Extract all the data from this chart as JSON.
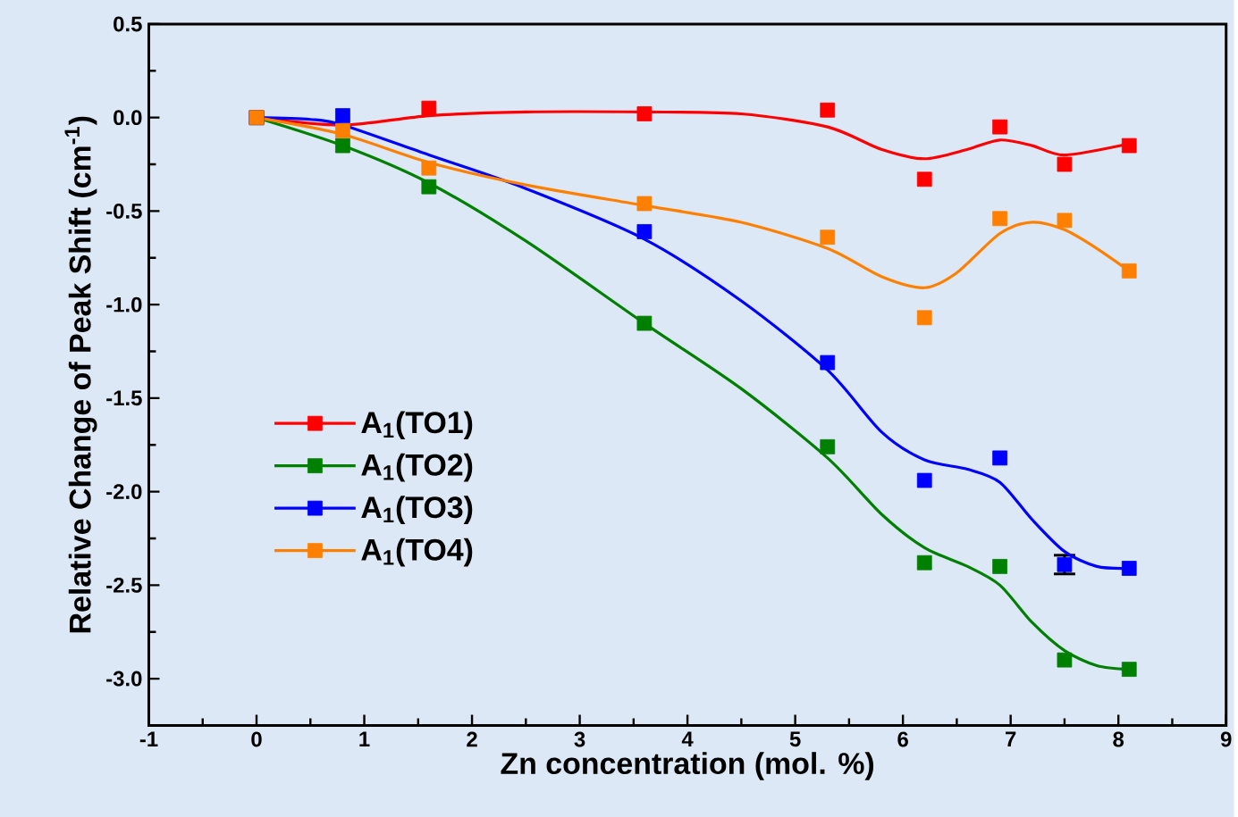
{
  "chart_data": {
    "type": "scatter",
    "xlabel": "Zn concentration (mol. %)",
    "ylabel": "Relative Change of Peak Shift (cm$^{-1}$)",
    "xlim": [
      -1,
      9
    ],
    "ylim": [
      -3.25,
      0.5
    ],
    "xticks": [
      -1,
      0,
      1,
      2,
      3,
      4,
      5,
      6,
      7,
      8,
      9
    ],
    "yticks": [
      {
        "value": -3.0,
        "label": "-3.0"
      },
      {
        "value": -2.5,
        "label": "-2.5"
      },
      {
        "value": -2.0,
        "label": "-2.0"
      },
      {
        "value": -1.5,
        "label": "-1.5"
      },
      {
        "value": -1.0,
        "label": "-1.0"
      },
      {
        "value": -0.5,
        "label": "-0.5"
      },
      {
        "value": 0.0,
        "label": "0.0"
      },
      {
        "value": 0.5,
        "label": "0.5"
      }
    ],
    "grid": false,
    "legend": "left",
    "marker": "square",
    "x": [
      0,
      0.8,
      1.6,
      3.6,
      5.3,
      6.2,
      6.9,
      7.5,
      8.1
    ],
    "series": [
      {
        "name": "A$_{1}$(TO1)",
        "color": "#ff0000",
        "values": [
          0,
          null,
          0.05,
          0.02,
          0.04,
          -0.33,
          -0.05,
          -0.25,
          -0.15
        ]
      },
      {
        "name": "A$_{1}$(TO2)",
        "color": "#008000",
        "values": [
          0,
          -0.15,
          -0.37,
          -1.1,
          -1.76,
          -2.38,
          -2.4,
          -2.9,
          -2.95
        ]
      },
      {
        "name": "A$_{1}$(TO3)",
        "color": "#0000ff",
        "values": [
          0,
          0.01,
          null,
          -0.61,
          -1.31,
          -1.94,
          -1.82,
          -2.39,
          -2.41
        ],
        "errors": [
          null,
          null,
          null,
          null,
          null,
          null,
          null,
          0.05,
          null
        ]
      },
      {
        "name": "A$_{1}$(TO4)",
        "color": "#ff8000",
        "values": [
          0,
          -0.07,
          -0.27,
          -0.46,
          -0.64,
          -1.07,
          -0.54,
          -0.55,
          -0.82
        ]
      },
      {
        "type": "line",
        "color": "#ff0000",
        "marker": "none",
        "x": [
          0,
          0.8,
          1.6,
          2.5,
          3.6,
          4.5,
          5.3,
          5.8,
          6.2,
          6.6,
          6.9,
          7.2,
          7.5,
          8.1
        ],
        "values": [
          0,
          -0.04,
          0.01,
          0.03,
          0.03,
          0.02,
          -0.05,
          -0.17,
          -0.22,
          -0.17,
          -0.12,
          -0.15,
          -0.2,
          -0.14
        ]
      },
      {
        "type": "line",
        "color": "#008000",
        "marker": "none",
        "x": [
          0,
          0.8,
          1.6,
          2.5,
          3.6,
          4.5,
          5.3,
          5.8,
          6.2,
          6.6,
          6.9,
          7.2,
          7.5,
          7.8,
          8.1
        ],
        "values": [
          0,
          -0.15,
          -0.35,
          -0.66,
          -1.1,
          -1.45,
          -1.82,
          -2.12,
          -2.3,
          -2.4,
          -2.5,
          -2.7,
          -2.85,
          -2.93,
          -2.95
        ]
      },
      {
        "type": "line",
        "color": "#0000ff",
        "marker": "none",
        "x": [
          0,
          0.5,
          0.8,
          1.6,
          2.5,
          3.6,
          4.5,
          5.3,
          5.8,
          6.2,
          6.6,
          6.9,
          7.2,
          7.5,
          7.8,
          8.1
        ],
        "values": [
          0,
          -0.01,
          -0.04,
          -0.2,
          -0.38,
          -0.65,
          -0.98,
          -1.35,
          -1.68,
          -1.83,
          -1.88,
          -1.95,
          -2.15,
          -2.32,
          -2.4,
          -2.41
        ]
      },
      {
        "type": "line",
        "color": "#ff8000",
        "marker": "none",
        "x": [
          0,
          0.8,
          1.6,
          2.5,
          3.6,
          4.5,
          5.3,
          5.8,
          6.2,
          6.5,
          6.9,
          7.2,
          7.5,
          7.8,
          8.1
        ],
        "values": [
          0,
          -0.09,
          -0.24,
          -0.36,
          -0.47,
          -0.56,
          -0.7,
          -0.85,
          -0.91,
          -0.83,
          -0.62,
          -0.56,
          -0.6,
          -0.7,
          -0.82
        ]
      }
    ]
  }
}
